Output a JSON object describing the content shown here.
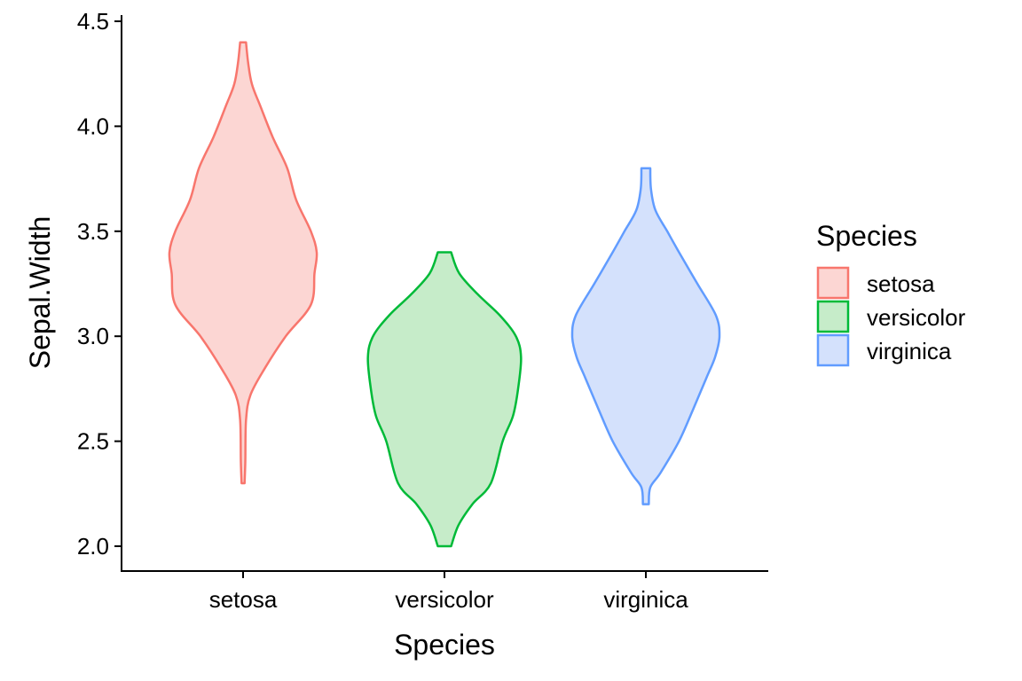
{
  "chart_data": {
    "type": "violin",
    "title": "",
    "xlabel": "Species",
    "ylabel": "Sepal.Width",
    "categories": [
      "setosa",
      "versicolor",
      "virginica"
    ],
    "ylim": [
      1.94,
      4.51
    ],
    "yticks": [
      2.0,
      2.5,
      3.0,
      3.5,
      4.0,
      4.5
    ],
    "ytick_labels": [
      "2.0",
      "2.5",
      "3.0",
      "3.5",
      "4.0",
      "4.5"
    ],
    "grid": false,
    "legend": {
      "title": "Species",
      "position": "right",
      "items": [
        "setosa",
        "versicolor",
        "virginica"
      ]
    },
    "series": [
      {
        "name": "setosa",
        "stroke": "#f8766d",
        "fill": "#fcd6d3",
        "density_profile": [
          [
            2.3,
            0.02
          ],
          [
            2.4,
            0.03
          ],
          [
            2.6,
            0.04
          ],
          [
            2.72,
            0.1
          ],
          [
            2.85,
            0.3
          ],
          [
            3.0,
            0.58
          ],
          [
            3.15,
            0.92
          ],
          [
            3.3,
            0.97
          ],
          [
            3.4,
            1.0
          ],
          [
            3.5,
            0.92
          ],
          [
            3.65,
            0.72
          ],
          [
            3.8,
            0.6
          ],
          [
            3.95,
            0.4
          ],
          [
            4.1,
            0.23
          ],
          [
            4.2,
            0.12
          ],
          [
            4.3,
            0.07
          ],
          [
            4.4,
            0.04
          ]
        ]
      },
      {
        "name": "versicolor",
        "stroke": "#00ba38",
        "fill": "#c6ecc9",
        "density_profile": [
          [
            2.0,
            0.09
          ],
          [
            2.1,
            0.19
          ],
          [
            2.2,
            0.38
          ],
          [
            2.3,
            0.63
          ],
          [
            2.5,
            0.79
          ],
          [
            2.62,
            0.93
          ],
          [
            2.75,
            1.0
          ],
          [
            2.9,
            1.04
          ],
          [
            3.0,
            0.97
          ],
          [
            3.1,
            0.75
          ],
          [
            3.2,
            0.45
          ],
          [
            3.3,
            0.2
          ],
          [
            3.4,
            0.09
          ]
        ]
      },
      {
        "name": "virginica",
        "stroke": "#619cff",
        "fill": "#d4e1fc",
        "density_profile": [
          [
            2.2,
            0.04
          ],
          [
            2.28,
            0.06
          ],
          [
            2.35,
            0.2
          ],
          [
            2.5,
            0.45
          ],
          [
            2.65,
            0.64
          ],
          [
            2.8,
            0.82
          ],
          [
            2.9,
            0.94
          ],
          [
            3.0,
            1.0
          ],
          [
            3.1,
            0.95
          ],
          [
            3.25,
            0.7
          ],
          [
            3.4,
            0.45
          ],
          [
            3.5,
            0.29
          ],
          [
            3.6,
            0.13
          ],
          [
            3.7,
            0.07
          ],
          [
            3.8,
            0.06
          ]
        ]
      }
    ]
  }
}
